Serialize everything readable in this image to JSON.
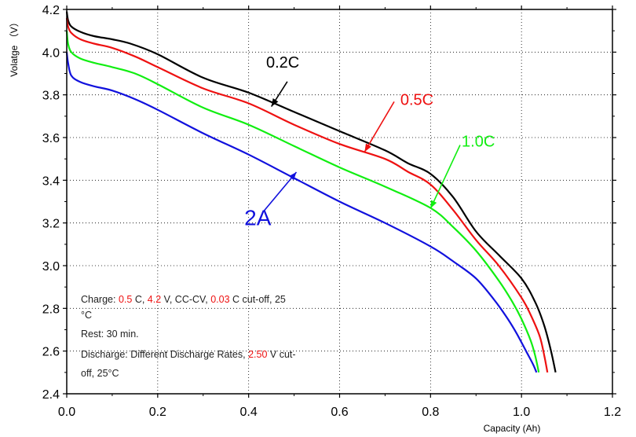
{
  "chart_data": {
    "type": "line",
    "xlabel": "Capacity (Ah)",
    "ylabel": "Volatge （V）",
    "xlim": [
      0,
      1.2
    ],
    "ylim": [
      2.4,
      4.2
    ],
    "xticks": [
      0.0,
      0.2,
      0.4,
      0.6,
      0.8,
      1.0,
      1.2
    ],
    "xtick_labels": [
      "0.0",
      "0.2",
      "0.4",
      "0.6",
      "0.8",
      "1.0",
      "1.2"
    ],
    "yticks": [
      2.4,
      2.6,
      2.8,
      3.0,
      3.2,
      3.4,
      3.6,
      3.8,
      4.0,
      4.2
    ],
    "ytick_labels": [
      "2.4",
      "2.6",
      "2.8",
      "3.0",
      "3.2",
      "3.4",
      "3.6",
      "3.8",
      "4.0",
      "4.2"
    ],
    "grid": "dotted",
    "series": [
      {
        "name": "0.2C",
        "color": "#000000",
        "x": [
          0.0,
          0.003,
          0.01,
          0.03,
          0.06,
          0.1,
          0.14,
          0.2,
          0.3,
          0.4,
          0.5,
          0.6,
          0.7,
          0.75,
          0.8,
          0.85,
          0.9,
          0.95,
          1.0,
          1.03,
          1.05,
          1.065,
          1.075
        ],
        "y": [
          4.19,
          4.15,
          4.12,
          4.095,
          4.075,
          4.06,
          4.04,
          3.99,
          3.88,
          3.81,
          3.72,
          3.63,
          3.54,
          3.48,
          3.43,
          3.32,
          3.16,
          3.05,
          2.94,
          2.83,
          2.72,
          2.6,
          2.5
        ]
      },
      {
        "name": "0.5C",
        "color": "#ee1111",
        "x": [
          0.0,
          0.003,
          0.01,
          0.03,
          0.06,
          0.1,
          0.15,
          0.2,
          0.3,
          0.4,
          0.5,
          0.6,
          0.7,
          0.75,
          0.8,
          0.85,
          0.9,
          0.95,
          1.0,
          1.02,
          1.04,
          1.05,
          1.057
        ],
        "y": [
          4.16,
          4.12,
          4.09,
          4.06,
          4.04,
          4.02,
          3.98,
          3.93,
          3.83,
          3.76,
          3.66,
          3.57,
          3.5,
          3.44,
          3.38,
          3.26,
          3.12,
          3.0,
          2.85,
          2.77,
          2.67,
          2.58,
          2.5
        ]
      },
      {
        "name": "1.0C",
        "color": "#11ee11",
        "x": [
          0.0,
          0.003,
          0.01,
          0.03,
          0.06,
          0.1,
          0.15,
          0.2,
          0.3,
          0.4,
          0.5,
          0.6,
          0.7,
          0.8,
          0.85,
          0.9,
          0.95,
          0.98,
          1.0,
          1.02,
          1.03,
          1.038
        ],
        "y": [
          4.1,
          4.04,
          4.0,
          3.97,
          3.95,
          3.93,
          3.9,
          3.85,
          3.74,
          3.66,
          3.56,
          3.46,
          3.37,
          3.27,
          3.18,
          3.07,
          2.93,
          2.83,
          2.75,
          2.65,
          2.58,
          2.5
        ]
      },
      {
        "name": "2A",
        "color": "#1111dd",
        "x": [
          0.0,
          0.003,
          0.01,
          0.03,
          0.06,
          0.1,
          0.15,
          0.2,
          0.3,
          0.4,
          0.5,
          0.6,
          0.7,
          0.8,
          0.85,
          0.9,
          0.94,
          0.97,
          0.99,
          1.01,
          1.025,
          1.033
        ],
        "y": [
          4.0,
          3.95,
          3.89,
          3.86,
          3.84,
          3.82,
          3.78,
          3.73,
          3.62,
          3.52,
          3.41,
          3.3,
          3.2,
          3.09,
          3.02,
          2.94,
          2.84,
          2.75,
          2.68,
          2.6,
          2.54,
          2.5
        ]
      }
    ],
    "annotations": [
      {
        "text": "0.2C",
        "color": "#000000",
        "label_at": [
          0.475,
          3.928
        ],
        "arrow_from": [
          0.485,
          3.862
        ],
        "arrow_to": [
          0.45,
          3.745
        ]
      },
      {
        "text": "0.5C",
        "color": "#ee1111",
        "label_at": [
          0.77,
          3.752
        ],
        "arrow_from": [
          0.72,
          3.768
        ],
        "arrow_to": [
          0.655,
          3.533
        ]
      },
      {
        "text": "1.0C",
        "color": "#11ee11",
        "label_at": [
          0.905,
          3.558
        ],
        "arrow_from": [
          0.865,
          3.565
        ],
        "arrow_to": [
          0.8,
          3.268
        ]
      },
      {
        "text": "2A",
        "color": "#1111dd",
        "label_at": [
          0.42,
          3.19
        ],
        "arrow_from": [
          0.43,
          3.247
        ],
        "arrow_to": [
          0.505,
          3.438
        ]
      }
    ],
    "conditions_note": {
      "lines": [
        [
          {
            "text": "Charge: ",
            "color": "#222222"
          },
          {
            "text": "0.5",
            "color": "#ee1111"
          },
          {
            "text": " C, ",
            "color": "#222222"
          },
          {
            "text": "4.2",
            "color": "#ee1111"
          },
          {
            "text": " V, CC-CV, ",
            "color": "#222222"
          },
          {
            "text": "0.03",
            "color": "#ee1111"
          },
          {
            "text": " C cut-off, 25",
            "color": "#222222"
          }
        ],
        [
          {
            "text": "°C",
            "color": "#222222"
          }
        ],
        [
          {
            "text": "Rest: 30 min.",
            "color": "#222222"
          }
        ],
        [
          {
            "text": "Discharge: Different Discharge Rates, ",
            "color": "#222222"
          },
          {
            "text": "2.50",
            "color": "#ee1111"
          },
          {
            "text": " V cut-",
            "color": "#222222"
          }
        ],
        [
          {
            "text": "off, 25°C",
            "color": "#222222"
          }
        ]
      ]
    }
  }
}
